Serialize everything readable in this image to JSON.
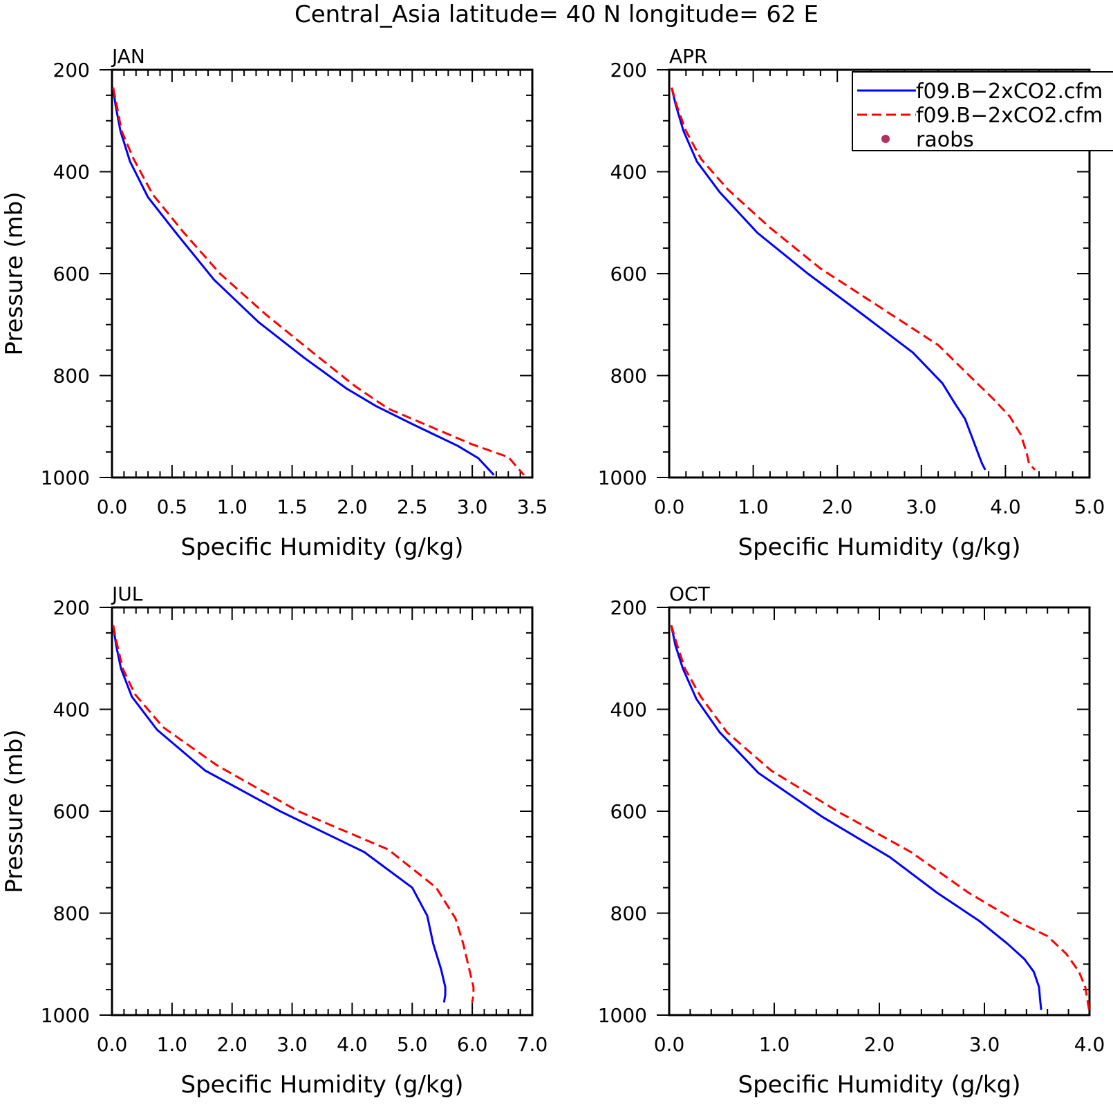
{
  "title": "Central_Asia  latitude= 40 N longitude= 62 E",
  "legend": {
    "placement": "top-right",
    "entries": [
      {
        "label": "f09.B−2xCO2.cfm",
        "color": "#0000ff",
        "style": "solid"
      },
      {
        "label": "f09.B−2xCO2.cfm",
        "color": "#ff0000",
        "style": "dashed"
      },
      {
        "label": "raobs",
        "color": "#b03060",
        "style": "dot"
      }
    ]
  },
  "colors": {
    "series_a": "#0000ff",
    "series_b": "#ff0000",
    "raobs": "#b03060"
  },
  "chart_data": [
    {
      "type": "line",
      "title": "JAN",
      "xlabel": "Specific Humidity (g/kg)",
      "ylabel": "Pressure (mb)",
      "xlim": [
        0,
        3.5
      ],
      "ylim": [
        200,
        1000
      ],
      "y_inverted": true,
      "x_ticks": [
        "0.0",
        "0.5",
        "1.0",
        "1.5",
        "2.0",
        "2.5",
        "3.0",
        "3.5"
      ],
      "y_ticks": [
        "200",
        "400",
        "600",
        "800",
        "1000"
      ],
      "series": [
        {
          "style": "solid",
          "color": "#0000ff",
          "x": [
            0.01,
            0.03,
            0.07,
            0.15,
            0.3,
            0.55,
            0.85,
            1.22,
            1.6,
            1.95,
            2.2,
            2.5,
            2.88,
            3.05,
            3.18
          ],
          "y": [
            235,
            270,
            320,
            380,
            450,
            525,
            612,
            695,
            765,
            825,
            860,
            895,
            938,
            962,
            995
          ]
        },
        {
          "style": "dashed",
          "color": "#ff0000",
          "x": [
            0.01,
            0.04,
            0.08,
            0.18,
            0.34,
            0.6,
            0.9,
            1.28,
            1.7,
            2.02,
            2.3,
            2.65,
            3.0,
            3.3,
            3.43
          ],
          "y": [
            235,
            270,
            320,
            375,
            445,
            520,
            600,
            680,
            760,
            820,
            865,
            900,
            935,
            960,
            995
          ]
        }
      ]
    },
    {
      "type": "line",
      "title": "APR",
      "xlabel": "Specific Humidity (g/kg)",
      "ylabel": "",
      "xlim": [
        0,
        5.0
      ],
      "ylim": [
        200,
        1000
      ],
      "y_inverted": true,
      "x_ticks": [
        "0.0",
        "1.0",
        "2.0",
        "3.0",
        "4.0",
        "5.0"
      ],
      "y_ticks": [
        "200",
        "400",
        "600",
        "800",
        "1000"
      ],
      "series": [
        {
          "style": "solid",
          "color": "#0000ff",
          "x": [
            0.03,
            0.08,
            0.17,
            0.33,
            0.6,
            1.05,
            1.65,
            2.3,
            2.9,
            3.25,
            3.4,
            3.52,
            3.6,
            3.68,
            3.72,
            3.76
          ],
          "y": [
            235,
            270,
            320,
            380,
            440,
            520,
            600,
            680,
            755,
            815,
            855,
            885,
            920,
            955,
            972,
            985
          ]
        },
        {
          "style": "dashed",
          "color": "#ff0000",
          "x": [
            0.03,
            0.09,
            0.2,
            0.38,
            0.7,
            1.2,
            1.8,
            2.5,
            3.2,
            3.6,
            3.85,
            4.05,
            4.18,
            4.25,
            4.28,
            4.35
          ],
          "y": [
            235,
            270,
            320,
            375,
            435,
            510,
            590,
            665,
            740,
            805,
            845,
            880,
            915,
            950,
            972,
            985
          ]
        }
      ]
    },
    {
      "type": "line",
      "title": "JUL",
      "xlabel": "Specific Humidity (g/kg)",
      "ylabel": "Pressure (mb)",
      "xlim": [
        0,
        7.0
      ],
      "ylim": [
        200,
        1000
      ],
      "y_inverted": true,
      "x_ticks": [
        "0.0",
        "1.0",
        "2.0",
        "3.0",
        "4.0",
        "5.0",
        "6.0",
        "7.0"
      ],
      "y_ticks": [
        "200",
        "400",
        "600",
        "800",
        "1000"
      ],
      "series": [
        {
          "style": "solid",
          "color": "#0000ff",
          "x": [
            0.02,
            0.07,
            0.15,
            0.33,
            0.75,
            1.55,
            2.8,
            4.2,
            5.0,
            5.25,
            5.35,
            5.48,
            5.55,
            5.55,
            5.53
          ],
          "y": [
            235,
            275,
            320,
            375,
            440,
            520,
            600,
            680,
            750,
            805,
            860,
            910,
            945,
            960,
            975
          ]
        },
        {
          "style": "dashed",
          "color": "#ff0000",
          "x": [
            0.02,
            0.08,
            0.18,
            0.38,
            0.85,
            1.75,
            3.1,
            4.6,
            5.4,
            5.72,
            5.85,
            5.95,
            6.02,
            6.02,
            6.0
          ],
          "y": [
            235,
            270,
            320,
            370,
            435,
            510,
            600,
            675,
            750,
            810,
            860,
            910,
            945,
            960,
            975
          ]
        }
      ]
    },
    {
      "type": "line",
      "title": "OCT",
      "xlabel": "Specific Humidity (g/kg)",
      "ylabel": "",
      "xlim": [
        0,
        4.0
      ],
      "ylim": [
        200,
        1000
      ],
      "y_inverted": true,
      "x_ticks": [
        "0.0",
        "1.0",
        "2.0",
        "3.0",
        "4.0"
      ],
      "y_ticks": [
        "200",
        "400",
        "600",
        "800",
        "1000"
      ],
      "series": [
        {
          "style": "solid",
          "color": "#0000ff",
          "x": [
            0.02,
            0.06,
            0.13,
            0.26,
            0.48,
            0.85,
            1.45,
            2.1,
            2.55,
            2.95,
            3.22,
            3.38,
            3.47,
            3.52,
            3.53,
            3.54
          ],
          "y": [
            235,
            275,
            320,
            380,
            445,
            525,
            610,
            690,
            760,
            815,
            860,
            890,
            915,
            945,
            970,
            990
          ]
        },
        {
          "style": "dashed",
          "color": "#ff0000",
          "x": [
            0.02,
            0.07,
            0.15,
            0.3,
            0.55,
            0.97,
            1.6,
            2.3,
            2.85,
            3.3,
            3.6,
            3.78,
            3.9,
            3.96,
            3.98,
            4.0
          ],
          "y": [
            235,
            270,
            320,
            375,
            445,
            520,
            600,
            680,
            760,
            815,
            845,
            880,
            915,
            945,
            970,
            995
          ]
        }
      ]
    }
  ]
}
